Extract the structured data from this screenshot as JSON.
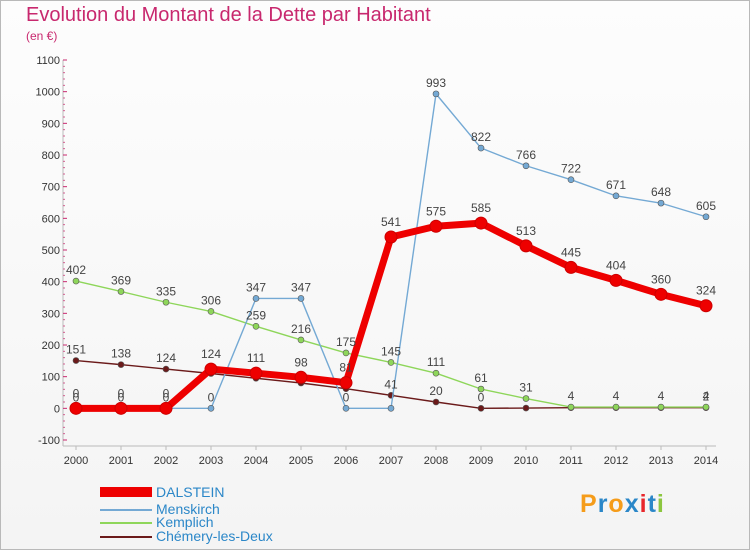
{
  "chart_data": {
    "type": "line",
    "title": "Evolution du Montant de la Dette par Habitant",
    "unit": "(en €)",
    "x": [
      "2000",
      "2001",
      "2002",
      "2003",
      "2004",
      "2005",
      "2006",
      "2007",
      "2008",
      "2009",
      "2010",
      "2011",
      "2012",
      "2013",
      "2014"
    ],
    "ylim": [
      -100,
      1100
    ],
    "yticks": [
      "1100",
      "1000",
      "900",
      "800",
      "700",
      "600",
      "500",
      "400",
      "300",
      "200",
      "100",
      "0",
      "-100"
    ],
    "series": [
      {
        "name": "Chémery-les-Deux",
        "color": "#6b1a1a",
        "values": [
          151,
          138,
          124,
          110,
          95,
          80,
          62,
          41,
          20,
          0,
          1,
          2,
          2,
          2,
          2
        ],
        "labels": [
          "151",
          "138",
          "124",
          "",
          "",
          "",
          "",
          "41",
          "20",
          "0",
          "",
          "",
          "",
          "",
          "2"
        ]
      },
      {
        "name": "Kemplich",
        "color": "#8ed65a",
        "values": [
          402,
          369,
          335,
          306,
          259,
          216,
          175,
          145,
          111,
          61,
          31,
          4,
          4,
          4,
          4
        ],
        "labels": [
          "402",
          "369",
          "335",
          "306",
          "259",
          "216",
          "175",
          "145",
          "111",
          "61",
          "31",
          "4",
          "4",
          "4",
          "4"
        ]
      },
      {
        "name": "Menskirch",
        "color": "#74a9d4",
        "values": [
          0,
          0,
          0,
          0,
          347,
          347,
          0,
          0,
          993,
          822,
          766,
          722,
          671,
          648,
          605
        ],
        "labels": [
          "0",
          "0",
          "0",
          "0",
          "347",
          "347",
          "0",
          "",
          "993",
          "822",
          "766",
          "722",
          "671",
          "648",
          "605"
        ]
      },
      {
        "name": "DALSTEIN",
        "color": "#ee0000",
        "values": [
          0,
          0,
          0,
          124,
          111,
          98,
          81,
          541,
          575,
          585,
          513,
          445,
          404,
          360,
          324
        ],
        "labels": [
          "0",
          "0",
          "0",
          "124",
          "111",
          "98",
          "81",
          "541",
          "575",
          "585",
          "513",
          "445",
          "404",
          "360",
          "324"
        ]
      }
    ],
    "legend": [
      "DALSTEIN",
      "Menskirch",
      "Kemplich",
      "Chémery-les-Deux"
    ],
    "legend_position": "bottom-left",
    "grid": false
  },
  "logo": {
    "text": "Proxiti",
    "colors": [
      "#f59c1a",
      "#2b87c8",
      "#f59c1a",
      "#2b87c8",
      "#e8262b",
      "#2b87c8",
      "#8cc63f"
    ]
  }
}
